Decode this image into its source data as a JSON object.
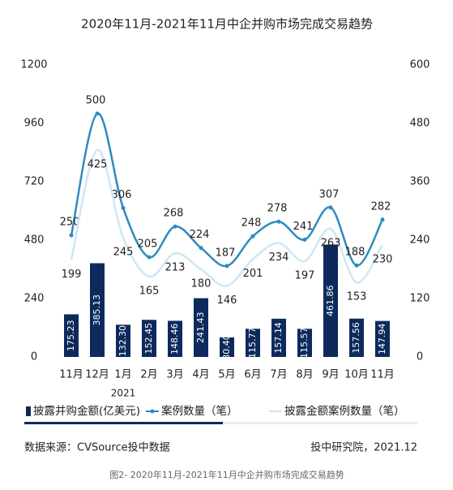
{
  "chart_data": {
    "type": "bar-line",
    "title": "2020年11月-2021年11月中企并购市场完成交易趋势",
    "categories": [
      "11月",
      "12月",
      "1月",
      "2月",
      "3月",
      "4月",
      "5月",
      "6月",
      "7月",
      "8月",
      "9月",
      "10月",
      "11月"
    ],
    "annotation": "2021",
    "series": [
      {
        "name": "披露并购金额(亿美元)",
        "type": "bar",
        "color": "#0d2a5c",
        "values": [
          175.23,
          385.13,
          132.3,
          152.45,
          148.46,
          241.43,
          80.4,
          115.77,
          157.14,
          115.57,
          461.86,
          157.56,
          147.94
        ],
        "value_labels": [
          "175.23",
          "385.13",
          "132.30",
          "152.45",
          "148.46",
          "241.43",
          "80.40",
          "115.77",
          "157.14",
          "115.57",
          "461.86",
          "157.56",
          "147.94"
        ]
      },
      {
        "name": "案例数量（笔）",
        "type": "line",
        "axis": "y2",
        "color": "#2e8bc0",
        "values": [
          250,
          500,
          306,
          205,
          268,
          224,
          187,
          248,
          278,
          241,
          307,
          188,
          282
        ]
      },
      {
        "name": "披露金额案例数量（笔）",
        "type": "line",
        "axis": "y2",
        "color": "#cde7f6",
        "values": [
          199,
          425,
          245,
          165,
          213,
          180,
          146,
          201,
          234,
          197,
          263,
          153,
          230
        ]
      }
    ],
    "ylim": [
      0,
      1200
    ],
    "yticks": [
      0,
      240,
      480,
      720,
      960,
      1200
    ],
    "y2lim": [
      0,
      600
    ],
    "y2ticks": [
      0,
      120,
      240,
      360,
      480,
      600
    ],
    "source": "数据来源：CVSource投中数据",
    "publisher": "投中研究院，2021.12",
    "caption": "图2- 2020年11月-2021年11月中企并购市场完成交易趋势"
  }
}
